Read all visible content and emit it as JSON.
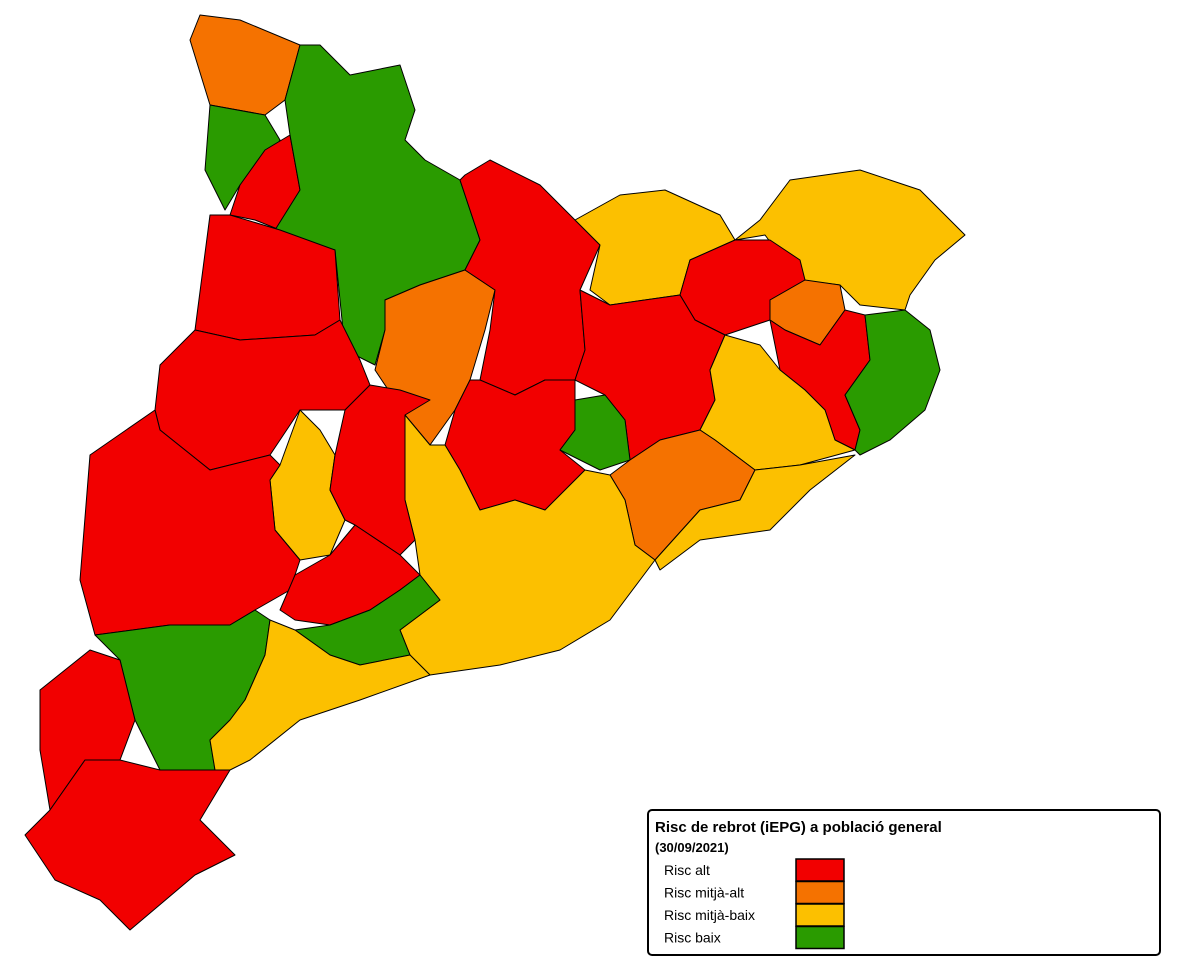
{
  "legend": {
    "title": "Risc de rebrot (iEPG) a població general",
    "subtitle": "(30/09/2021)",
    "items": [
      {
        "label": "Risc alt",
        "color": "#f20000"
      },
      {
        "label": "Risc mitjà-alt",
        "color": "#f57200"
      },
      {
        "label": "Risc mitjà-baix",
        "color": "#fcc000"
      },
      {
        "label": "Risc baix",
        "color": "#2a9b00"
      }
    ]
  }
}
